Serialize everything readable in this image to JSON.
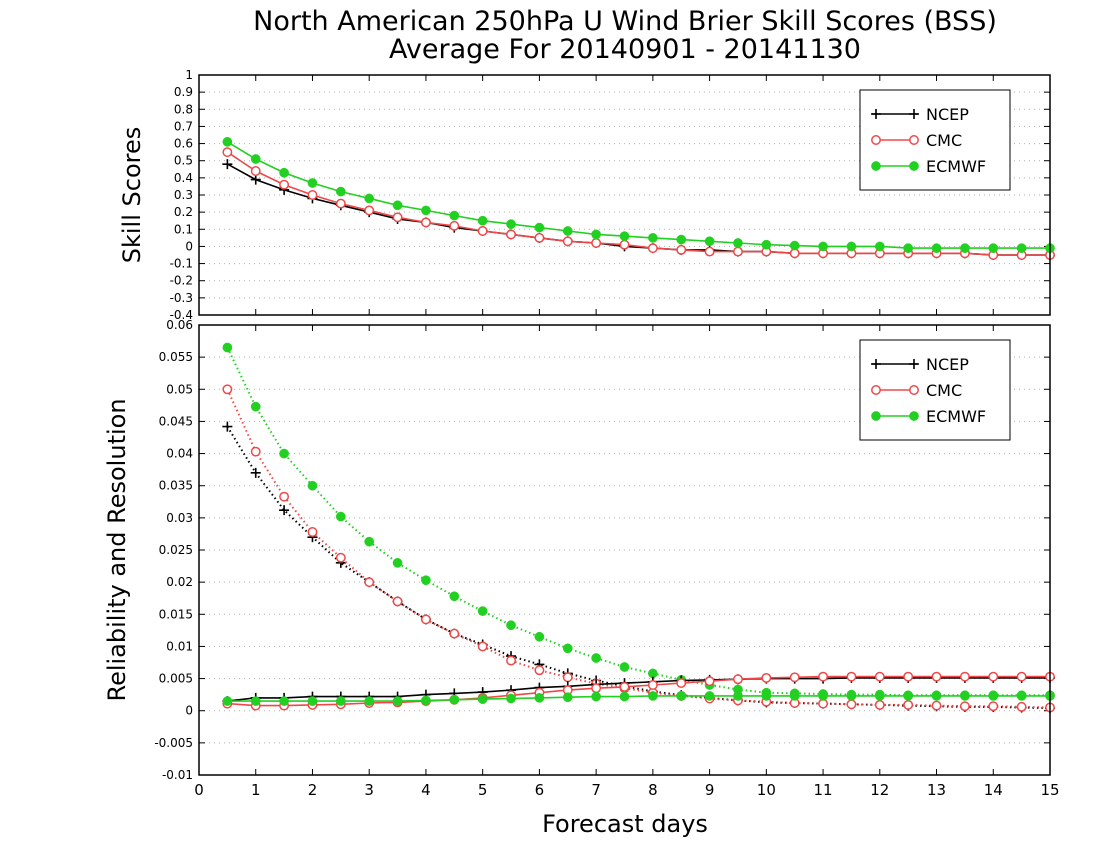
{
  "title_lines": [
    "North American 250hPa U Wind Brier Skill Scores (BSS)",
    "Average For 20140901 - 20141130"
  ],
  "xlabel": "Forecast days",
  "x_ticks": [
    "0",
    "1",
    "2",
    "3",
    "4",
    "5",
    "6",
    "7",
    "8",
    "9",
    "10",
    "11",
    "12",
    "13",
    "14",
    "15"
  ],
  "chart_data": [
    {
      "type": "line",
      "panel": "top",
      "ylabel": "Skill Scores",
      "xlim": [
        0,
        15
      ],
      "ylim": [
        -0.4,
        1
      ],
      "y_ticks": [
        "-0.4",
        "-0.3",
        "-0.2",
        "-0.1",
        "0",
        "0.1",
        "0.2",
        "0.3",
        "0.4",
        "0.5",
        "0.6",
        "0.7",
        "0.8",
        "0.9",
        "1"
      ],
      "grid": true,
      "legend_placement": "top-right",
      "x": [
        0.5,
        1,
        1.5,
        2,
        2.5,
        3,
        3.5,
        4,
        4.5,
        5,
        5.5,
        6,
        6.5,
        7,
        7.5,
        8,
        8.5,
        9,
        9.5,
        10,
        10.5,
        11,
        11.5,
        12,
        12.5,
        13,
        13.5,
        14,
        14.5,
        15
      ],
      "series": [
        {
          "name": "NCEP",
          "color": "#000000",
          "marker": "plus",
          "values": [
            0.48,
            0.39,
            0.33,
            0.28,
            0.24,
            0.2,
            0.16,
            0.14,
            0.11,
            0.09,
            0.07,
            0.05,
            0.03,
            0.02,
            0.0,
            -0.01,
            -0.02,
            -0.02,
            -0.03,
            -0.03,
            -0.04,
            -0.04,
            -0.04,
            -0.04,
            -0.04,
            -0.04,
            -0.04,
            -0.05,
            -0.05,
            -0.05
          ]
        },
        {
          "name": "CMC",
          "color": "#f04848",
          "marker": "open-circle",
          "values": [
            0.55,
            0.44,
            0.36,
            0.3,
            0.25,
            0.21,
            0.17,
            0.14,
            0.12,
            0.09,
            0.07,
            0.05,
            0.03,
            0.02,
            0.01,
            -0.01,
            -0.02,
            -0.03,
            -0.03,
            -0.03,
            -0.04,
            -0.04,
            -0.04,
            -0.04,
            -0.04,
            -0.04,
            -0.04,
            -0.05,
            -0.05,
            -0.05
          ]
        },
        {
          "name": "ECMWF",
          "color": "#22d022",
          "marker": "filled-circle",
          "values": [
            0.61,
            0.51,
            0.43,
            0.37,
            0.32,
            0.28,
            0.24,
            0.21,
            0.18,
            0.15,
            0.13,
            0.11,
            0.09,
            0.07,
            0.06,
            0.05,
            0.04,
            0.03,
            0.02,
            0.01,
            0.005,
            0.0,
            0.0,
            0.0,
            -0.01,
            -0.01,
            -0.01,
            -0.01,
            -0.01,
            -0.01
          ]
        }
      ]
    },
    {
      "type": "line",
      "panel": "bottom",
      "ylabel": "Reliability and Resolution",
      "xlim": [
        0,
        15
      ],
      "ylim": [
        -0.01,
        0.06
      ],
      "y_ticks": [
        "-0.01",
        "-0.005",
        "0",
        "0.005",
        "0.01",
        "0.015",
        "0.02",
        "0.025",
        "0.03",
        "0.035",
        "0.04",
        "0.045",
        "0.05",
        "0.055",
        "0.06"
      ],
      "grid": true,
      "legend_placement": "top-right",
      "x": [
        0.5,
        1,
        1.5,
        2,
        2.5,
        3,
        3.5,
        4,
        4.5,
        5,
        5.5,
        6,
        6.5,
        7,
        7.5,
        8,
        8.5,
        9,
        9.5,
        10,
        10.5,
        11,
        11.5,
        12,
        12.5,
        13,
        13.5,
        14,
        14.5,
        15
      ],
      "series": [
        {
          "name": "NCEP",
          "color": "#000000",
          "marker": "plus",
          "style": "dotted",
          "values": [
            0.0442,
            0.037,
            0.0312,
            0.027,
            0.023,
            0.02,
            0.017,
            0.0142,
            0.012,
            0.0103,
            0.0085,
            0.0072,
            0.0058,
            0.0047,
            0.0038,
            0.003,
            0.0024,
            0.002,
            0.0016,
            0.0013,
            0.0012,
            0.0011,
            0.001,
            0.0009,
            0.0008,
            0.0007,
            0.0006,
            0.0006,
            0.0005,
            0.0004
          ]
        },
        {
          "name": "CMC",
          "color": "#f04848",
          "marker": "open-circle",
          "style": "dotted",
          "values": [
            0.05,
            0.0403,
            0.0333,
            0.0278,
            0.0238,
            0.02,
            0.017,
            0.0142,
            0.012,
            0.01,
            0.0078,
            0.0063,
            0.0052,
            0.0042,
            0.0035,
            0.0028,
            0.0023,
            0.0019,
            0.0016,
            0.0014,
            0.0012,
            0.0011,
            0.001,
            0.0009,
            0.0009,
            0.0008,
            0.0007,
            0.0007,
            0.0006,
            0.0005
          ]
        },
        {
          "name": "ECMWF",
          "color": "#22d022",
          "marker": "filled-circle",
          "style": "dotted",
          "values": [
            0.0565,
            0.0473,
            0.04,
            0.035,
            0.0302,
            0.0263,
            0.023,
            0.0203,
            0.0178,
            0.0155,
            0.0133,
            0.0115,
            0.0097,
            0.0082,
            0.0068,
            0.0058,
            0.0048,
            0.004,
            0.0033,
            0.0028,
            0.0027,
            0.0026,
            0.0025,
            0.0025,
            0.0024,
            0.0024,
            0.0024,
            0.0024,
            0.0024,
            0.0024
          ]
        },
        {
          "name": "NCEP",
          "color": "#000000",
          "marker": "plus",
          "style": "solid",
          "values": [
            0.0015,
            0.002,
            0.002,
            0.0022,
            0.0022,
            0.0022,
            0.0022,
            0.0025,
            0.0027,
            0.0029,
            0.0032,
            0.0036,
            0.0038,
            0.0041,
            0.0043,
            0.0045,
            0.0047,
            0.0048,
            0.0049,
            0.005,
            0.005,
            0.005,
            0.0051,
            0.0051,
            0.0051,
            0.0051,
            0.0051,
            0.0051,
            0.0051,
            0.0051
          ]
        },
        {
          "name": "CMC",
          "color": "#f04848",
          "marker": "open-circle",
          "style": "solid",
          "values": [
            0.0011,
            0.0008,
            0.0008,
            0.0009,
            0.001,
            0.0012,
            0.0013,
            0.0015,
            0.0017,
            0.002,
            0.0024,
            0.0028,
            0.0032,
            0.0035,
            0.0037,
            0.004,
            0.0043,
            0.0046,
            0.0049,
            0.0051,
            0.0052,
            0.0053,
            0.0053,
            0.0053,
            0.0053,
            0.0053,
            0.0053,
            0.0053,
            0.0053,
            0.0053
          ]
        },
        {
          "name": "ECMWF",
          "color": "#22d022",
          "marker": "filled-circle",
          "style": "solid",
          "values": [
            0.0015,
            0.0015,
            0.0015,
            0.0015,
            0.0015,
            0.0015,
            0.0015,
            0.0016,
            0.0017,
            0.0018,
            0.0019,
            0.002,
            0.0021,
            0.0022,
            0.0022,
            0.0023,
            0.0023,
            0.0023,
            0.0023,
            0.0023,
            0.0023,
            0.0023,
            0.0023,
            0.0023,
            0.0023,
            0.0023,
            0.0023,
            0.0023,
            0.0023,
            0.0023
          ]
        }
      ]
    }
  ]
}
